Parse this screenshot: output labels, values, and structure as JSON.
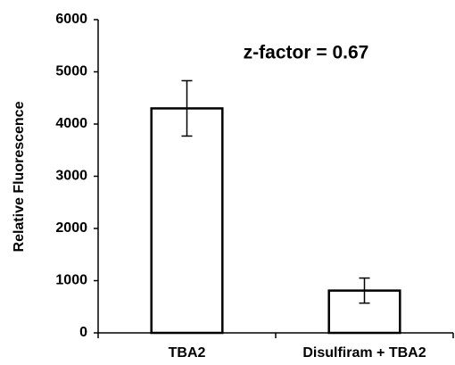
{
  "chart_data": {
    "type": "bar",
    "y_label": "Relative Fluorescence",
    "annotation": "z-factor = 0.67",
    "categories": [
      "TBA2",
      "Disulfiram + TBA2"
    ],
    "values": [
      4300,
      810
    ],
    "errors": [
      530,
      240
    ],
    "color": "#ffffff",
    "ylim": [
      0,
      6000
    ],
    "yticks": [
      0,
      1000,
      2000,
      3000,
      4000,
      5000,
      6000
    ],
    "grid": false
  }
}
